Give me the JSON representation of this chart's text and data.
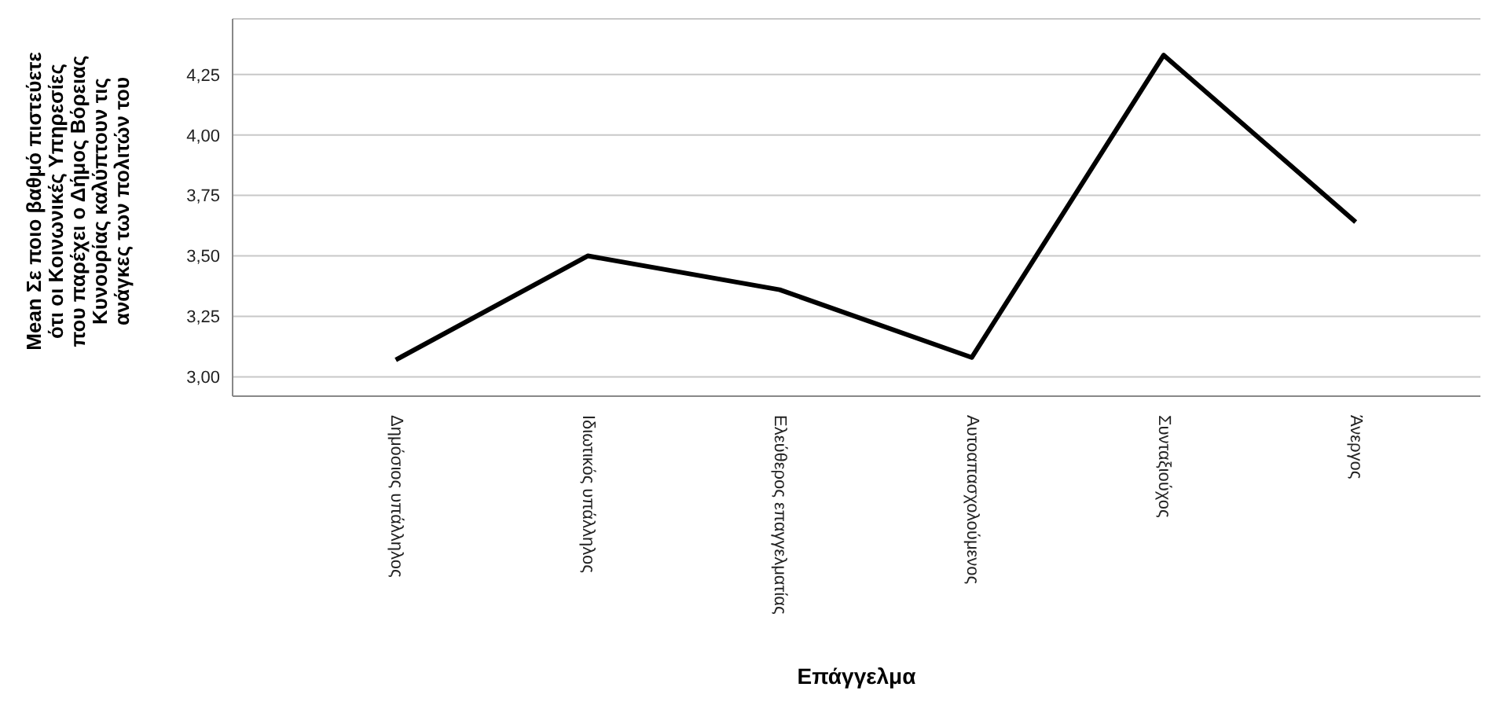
{
  "chart_data": {
    "type": "line",
    "xlabel": "Επάγγελμα",
    "ylabel": "Mean Σε ποιο βαθμό πιστεύετε ότι οι Κοινωνικές Υπηρεσίες που παρέχει ο Δήμος Βόρειας Κυνουρίας καλύπτουν τις ανάγκες των πολιτών του",
    "categories": [
      "Δημόσιος υπάλληλος",
      "Ιδιωτικός υπάλληλος",
      "Ελεύθερος επαγγελματίας",
      "Αυτοαπασχολούμενος",
      "Συνταξιούχος",
      "Άνεργος"
    ],
    "series": [
      {
        "color": "#000000",
        "values": [
          3.07,
          3.5,
          3.36,
          3.08,
          4.33,
          3.64
        ]
      }
    ],
    "ylim": [
      2.92,
      4.48
    ],
    "yticks": [
      {
        "value": 3,
        "label": "3,00"
      },
      {
        "value": 3.25,
        "label": "3,25"
      },
      {
        "value": 3.5,
        "label": "3,50"
      },
      {
        "value": 3.75,
        "label": "3,75"
      },
      {
        "value": 4,
        "label": "4,00"
      },
      {
        "value": 4.25,
        "label": "4,25"
      }
    ],
    "grid": "y",
    "legend": false,
    "marker": "none",
    "line_style": "solid"
  }
}
